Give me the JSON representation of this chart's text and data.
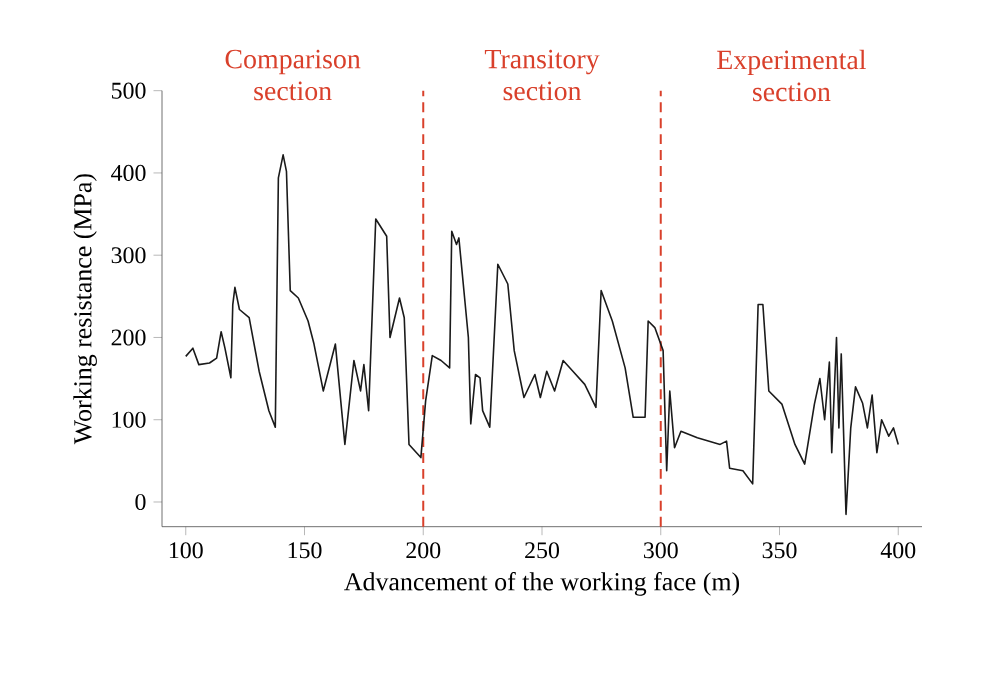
{
  "chart_data": {
    "type": "line",
    "xlabel": "Advancement of the working face (m)",
    "ylabel": "Working resistance (MPa)",
    "annotations": [
      "Comparison section",
      "Transitory section",
      "Experimental section"
    ],
    "xlim": [
      90,
      410
    ],
    "ylim": [
      -30,
      500
    ],
    "xticks": [
      100,
      150,
      200,
      250,
      300,
      350,
      400
    ],
    "yticks": [
      0,
      100,
      200,
      300,
      400,
      500
    ],
    "line_style": "solid",
    "ref_lines": [
      {
        "axis": "x",
        "value": 200,
        "color": "#d9402b",
        "line_style": "dashed"
      },
      {
        "axis": "x",
        "value": 300,
        "color": "#d9402b",
        "line_style": "dashed"
      }
    ],
    "series": [
      {
        "color": "#1a1a1a",
        "x": [
          100,
          103,
          105.5,
          110,
          113,
          114.9,
          116.5,
          119,
          119.8,
          120.7,
          122.6,
          126.7,
          130.9,
          135,
          137.7,
          139,
          141,
          142.4,
          144,
          147.4,
          151.5,
          154,
          157.9,
          163,
          167,
          170.8,
          173.6,
          175,
          177,
          180,
          184.6,
          186,
          190,
          192,
          194,
          199,
          201,
          203.8,
          207.5,
          211.1,
          212,
          214,
          215,
          219,
          220,
          222,
          223.9,
          225,
          228,
          231.4,
          235.6,
          238.3,
          242.4,
          247,
          249.3,
          252,
          255.3,
          258.9,
          263,
          268,
          272.7,
          274.9,
          279.6,
          285,
          288.4,
          293.4,
          294.7,
          297.5,
          301,
          302.5,
          303.8,
          305.8,
          308.5,
          315.4,
          325,
          327.7,
          329,
          334.6,
          338.7,
          341,
          343,
          345.5,
          351,
          356.5,
          360.6,
          364.7,
          367,
          369,
          371,
          372,
          374,
          375,
          376,
          378,
          380,
          382,
          385,
          387,
          389,
          391,
          393,
          396,
          398,
          400
        ],
        "values": [
          177,
          187,
          167,
          169,
          175,
          207,
          187,
          151,
          240,
          261,
          234,
          224,
          159,
          111,
          91,
          394,
          422,
          402,
          257,
          248,
          220,
          192,
          135,
          192,
          70,
          172,
          135,
          167,
          111,
          344,
          323,
          200,
          248,
          224,
          70,
          54,
          123,
          178,
          172,
          163,
          329,
          313,
          321,
          200,
          95,
          155,
          151,
          111,
          91,
          289,
          265,
          184,
          127,
          155,
          127,
          159,
          135,
          172,
          159,
          143,
          115,
          257,
          220,
          163,
          103,
          103,
          220,
          212,
          184,
          38,
          135,
          66,
          86,
          78,
          70,
          74,
          41,
          38,
          22,
          240,
          240,
          135,
          119,
          70,
          46,
          119,
          150,
          100,
          170,
          60,
          200,
          90,
          180,
          -15,
          90,
          140,
          120,
          90,
          130,
          60,
          100,
          80,
          90,
          70
        ]
      }
    ]
  }
}
